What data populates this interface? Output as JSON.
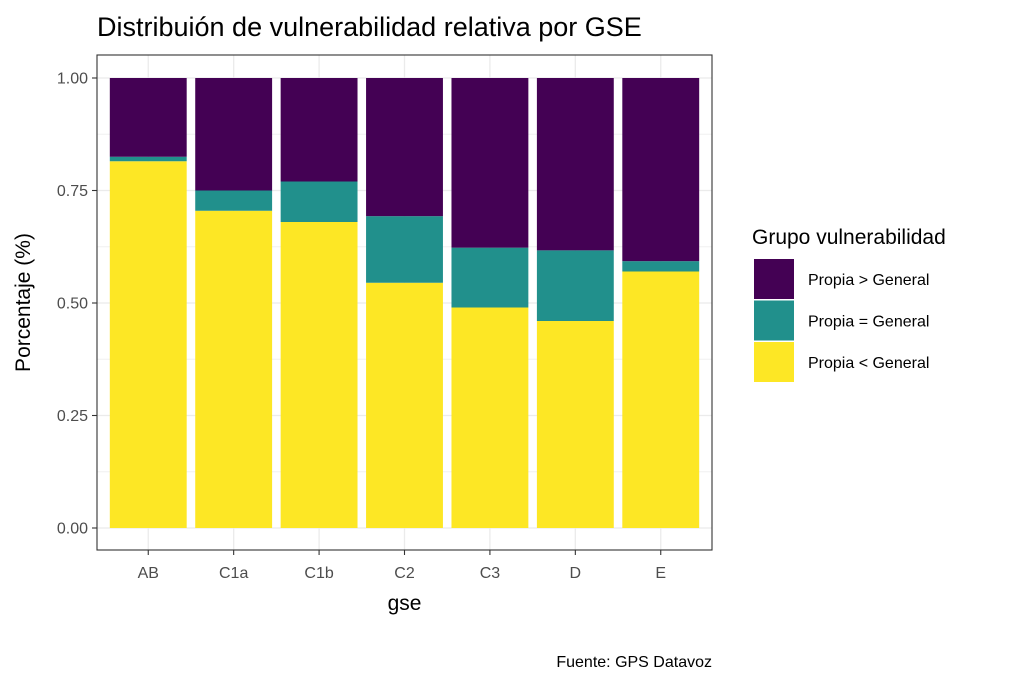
{
  "chart_data": {
    "type": "bar",
    "stacked": "percent",
    "title": "Distribuión de vulnerabilidad relativa por GSE",
    "xlabel": "gse",
    "ylabel": "Porcentaje (%)",
    "caption": "Fuente: GPS Datavoz",
    "categories": [
      "AB",
      "C1a",
      "C1b",
      "C2",
      "C3",
      "D",
      "E"
    ],
    "ylim": [
      0,
      1
    ],
    "yticks": [
      0,
      0.25,
      0.5,
      0.75,
      1
    ],
    "ytick_labels": [
      "0.00",
      "0.25",
      "0.50",
      "0.75",
      "1.00"
    ],
    "grid": true,
    "legend": {
      "title": "Grupo vulnerabilidad",
      "position": "right",
      "entries": [
        "Propia > General",
        "Propia = General",
        "Propia < General"
      ]
    },
    "series": [
      {
        "name": "Propia < General",
        "color": "#FDE725",
        "values": [
          0.815,
          0.705,
          0.68,
          0.545,
          0.49,
          0.46,
          0.57
        ]
      },
      {
        "name": "Propia = General",
        "color": "#21908C",
        "values": [
          0.01,
          0.045,
          0.09,
          0.148,
          0.133,
          0.157,
          0.023
        ]
      },
      {
        "name": "Propia > General",
        "color": "#440154",
        "values": [
          0.175,
          0.25,
          0.23,
          0.307,
          0.377,
          0.383,
          0.407
        ]
      }
    ]
  }
}
